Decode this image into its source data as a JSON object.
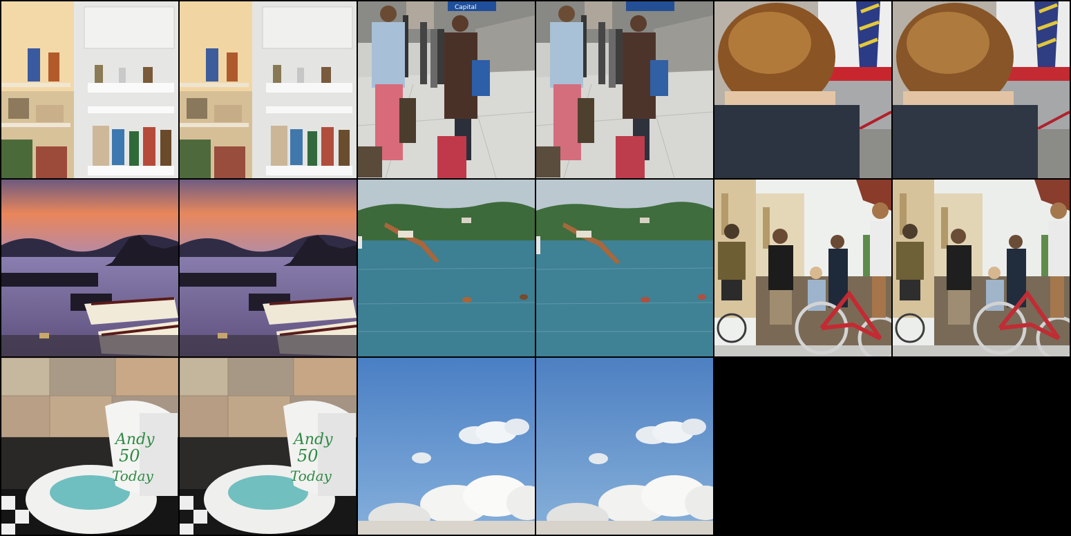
{
  "grid": {
    "columns": 6,
    "rows": 3,
    "filled_tiles": 16,
    "background": "#000000"
  },
  "tiles": [
    {
      "subject": "fridge-interior",
      "variant": "original"
    },
    {
      "subject": "fridge-interior",
      "variant": "reconstruction"
    },
    {
      "subject": "street-travelers",
      "variant": "original",
      "sign_text": "Capital"
    },
    {
      "subject": "street-travelers",
      "variant": "reconstruction"
    },
    {
      "subject": "boy-back-of-head",
      "variant": "original"
    },
    {
      "subject": "boy-back-of-head",
      "variant": "reconstruction"
    },
    {
      "subject": "sunset-coast-boats",
      "variant": "original"
    },
    {
      "subject": "sunset-coast-boats",
      "variant": "reconstruction"
    },
    {
      "subject": "diver-over-water",
      "variant": "original"
    },
    {
      "subject": "diver-over-water",
      "variant": "reconstruction"
    },
    {
      "subject": "people-with-bicycles",
      "variant": "original"
    },
    {
      "subject": "people-with-bicycles",
      "variant": "reconstruction"
    },
    {
      "subject": "toilet-cake",
      "variant": "original",
      "cake_lines": [
        "Andy",
        "50",
        "Today"
      ]
    },
    {
      "subject": "toilet-cake",
      "variant": "reconstruction",
      "cake_lines": [
        "Andy",
        "50",
        "Today"
      ]
    },
    {
      "subject": "blue-sky-clouds",
      "variant": "original"
    },
    {
      "subject": "blue-sky-clouds",
      "variant": "reconstruction"
    }
  ],
  "colors": {
    "fridge_light": "#f3d9a8",
    "sky_blue": "#5a8fd0",
    "sea_teal": "#3d7f93",
    "sunset_orange": "#e9865a",
    "cake_green": "#2f8a45"
  }
}
